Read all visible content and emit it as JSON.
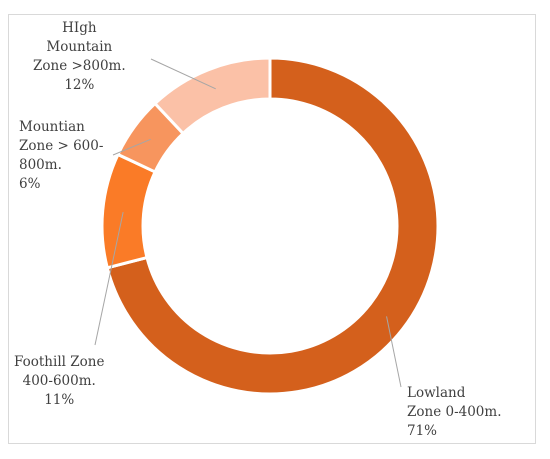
{
  "chart_data": {
    "type": "pie",
    "variant": "donut",
    "title": "",
    "legend": "none",
    "slices": [
      {
        "lines": [
          "Lowland",
          "Zone 0-400m.",
          "71%"
        ],
        "value": 71,
        "color": "#D4601C"
      },
      {
        "lines": [
          "Foothill Zone",
          "400-600m.",
          "11%"
        ],
        "value": 11,
        "color": "#FA7B27"
      },
      {
        "lines": [
          "Mountian",
          "Zone > 600-",
          "800m.",
          "6%"
        ],
        "value": 6,
        "color": "#F7955E"
      },
      {
        "lines": [
          "HIgh",
          "Mountain",
          "Zone >800m.",
          "12%"
        ],
        "value": 12,
        "color": "#FBC1A7"
      }
    ]
  }
}
